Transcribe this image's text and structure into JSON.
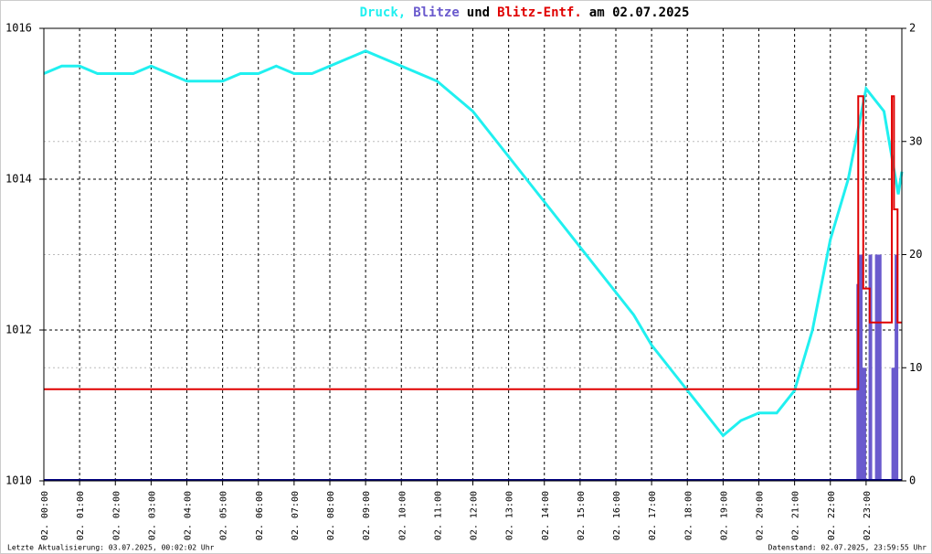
{
  "chart_data": {
    "type": "line",
    "title": [
      {
        "text": "Druck,",
        "color": "#20f0f0"
      },
      {
        "text": "Blitze",
        "color": "#6a5acd"
      },
      {
        "text": "und",
        "color": "#000000"
      },
      {
        "text": "Blitz-Entf.",
        "color": "#e00000"
      },
      {
        "text": "am 02.07.2025",
        "color": "#000000"
      }
    ],
    "xlim": [
      0,
      24
    ],
    "xticks": [
      {
        "value": 0,
        "label": "02. 00:00"
      },
      {
        "value": 1,
        "label": "02. 01:00"
      },
      {
        "value": 2,
        "label": "02. 02:00"
      },
      {
        "value": 3,
        "label": "02. 03:00"
      },
      {
        "value": 4,
        "label": "02. 04:00"
      },
      {
        "value": 5,
        "label": "02. 05:00"
      },
      {
        "value": 6,
        "label": "02. 06:00"
      },
      {
        "value": 7,
        "label": "02. 07:00"
      },
      {
        "value": 8,
        "label": "02. 08:00"
      },
      {
        "value": 9,
        "label": "02. 09:00"
      },
      {
        "value": 10,
        "label": "02. 10:00"
      },
      {
        "value": 11,
        "label": "02. 11:00"
      },
      {
        "value": 12,
        "label": "02. 12:00"
      },
      {
        "value": 13,
        "label": "02. 13:00"
      },
      {
        "value": 14,
        "label": "02. 14:00"
      },
      {
        "value": 15,
        "label": "02. 15:00"
      },
      {
        "value": 16,
        "label": "02. 16:00"
      },
      {
        "value": 17,
        "label": "02. 17:00"
      },
      {
        "value": 18,
        "label": "02. 18:00"
      },
      {
        "value": 19,
        "label": "02. 19:00"
      },
      {
        "value": 20,
        "label": "02. 20:00"
      },
      {
        "value": 21,
        "label": "02. 21:00"
      },
      {
        "value": 22,
        "label": "02. 22:00"
      },
      {
        "value": 23,
        "label": "02. 23:00"
      }
    ],
    "ylim": [
      1010,
      1016
    ],
    "yticks": [
      1010,
      1012,
      1014,
      1016
    ],
    "y2lim": [
      0,
      40
    ],
    "y2ticks": [
      0,
      10,
      20,
      30
    ],
    "y3lim": [
      0,
      2
    ],
    "y3ticks": [
      2
    ],
    "grid": true,
    "series": [
      {
        "name": "Druck",
        "color": "#20f0f0",
        "axis": "y",
        "x": [
          0,
          0.5,
          1,
          1.5,
          2,
          2.5,
          3,
          3.5,
          4,
          4.5,
          5,
          5.5,
          6,
          6.5,
          7,
          7.5,
          8,
          8.5,
          9,
          9.5,
          10,
          10.5,
          11,
          11.5,
          12,
          12.5,
          13,
          13.5,
          14,
          14.5,
          15,
          15.5,
          16,
          16.5,
          17,
          17.5,
          18,
          18.5,
          19,
          19.5,
          20,
          20.5,
          21,
          21.5,
          22,
          22.5,
          23,
          23.5,
          23.9,
          24
        ],
        "values": [
          1015.4,
          1015.5,
          1015.5,
          1015.4,
          1015.4,
          1015.4,
          1015.5,
          1015.4,
          1015.3,
          1015.3,
          1015.3,
          1015.4,
          1015.4,
          1015.5,
          1015.4,
          1015.4,
          1015.5,
          1015.6,
          1015.7,
          1015.6,
          1015.5,
          1015.4,
          1015.3,
          1015.1,
          1014.9,
          1014.6,
          1014.3,
          1014.0,
          1013.7,
          1013.4,
          1013.1,
          1012.8,
          1012.5,
          1012.2,
          1011.8,
          1011.5,
          1011.2,
          1010.9,
          1010.6,
          1010.8,
          1010.9,
          1010.9,
          1011.2,
          1012.0,
          1013.2,
          1014.0,
          1015.2,
          1014.9,
          1013.8,
          1014.1
        ]
      },
      {
        "name": "Blitze",
        "color": "#6a5acd",
        "axis": "y3",
        "x": [
          22.78,
          22.85,
          22.95,
          23.12,
          23.3,
          23.38,
          23.76,
          23.85
        ],
        "values": [
          0.87,
          1,
          0.5,
          1,
          1,
          1,
          0.5,
          1
        ]
      },
      {
        "name": "Blitz-Entf.",
        "color": "#e00000",
        "axis": "y2",
        "x": [
          0,
          22.78,
          22.78,
          22.92,
          22.92,
          23.1,
          23.1,
          23.72,
          23.72,
          23.78,
          23.78,
          23.88,
          23.88,
          24
        ],
        "values": [
          8.1,
          8.1,
          34,
          34,
          17,
          17,
          14,
          14,
          34,
          34,
          24,
          24,
          14,
          14
        ]
      }
    ],
    "footer_left": "Letzte Aktualisierung: 03.07.2025, 00:02:02 Uhr",
    "footer_right": "Datenstand: 02.07.2025, 23:59:55 Uhr"
  }
}
